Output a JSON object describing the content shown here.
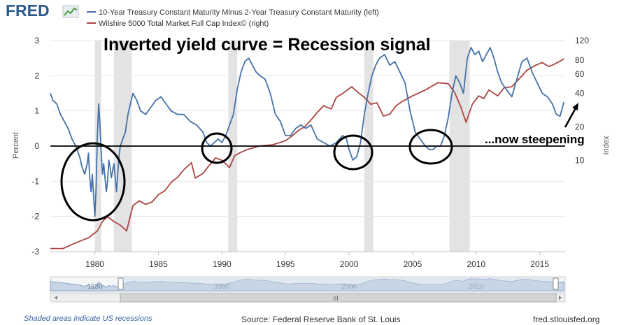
{
  "header": {
    "logo_text": "FRED",
    "legend": [
      {
        "label": "10-Year Treasury Constant Maturity Minus 2-Year Treasury Constant Maturity (left)",
        "color": "#4572a7"
      },
      {
        "label": "Wilshire 5000 Total Market Full Cap Index© (right)",
        "color": "#aa4643"
      }
    ]
  },
  "annotations": {
    "title": "Inverted yield curve = Recession signal",
    "steepening": "...now steepening"
  },
  "footer": {
    "note": "Shaded areas indicate US recessions",
    "source": "Source: Federal Reserve Bank of St. Louis",
    "site": "fred.stlouisfed.org"
  },
  "chart_data": {
    "type": "line",
    "xlabel": "",
    "ylabel": "Percent",
    "ylabel_right": "Index",
    "xlim": [
      1976.5,
      2017
    ],
    "ylim": [
      -3,
      3
    ],
    "ylim_right": [
      1.5,
      120
    ],
    "right_scale": "log",
    "x_ticks": [
      1980,
      1985,
      1990,
      1995,
      2000,
      2005,
      2010,
      2015
    ],
    "y_ticks": [
      -3,
      -2,
      -1,
      0,
      1,
      2,
      3
    ],
    "y_right_ticks": [
      10,
      20,
      40,
      60,
      80,
      120
    ],
    "grid": true,
    "reference_line_y": 0,
    "recessions": [
      [
        1980.0,
        1980.5
      ],
      [
        1981.5,
        1982.9
      ],
      [
        1990.5,
        1991.2
      ],
      [
        2001.2,
        2001.9
      ],
      [
        2007.9,
        2009.5
      ]
    ],
    "series": [
      {
        "name": "10-Year Treasury Constant Maturity Minus 2-Year Treasury Constant Maturity (left)",
        "axis": "left",
        "color": "#4572a7",
        "x": [
          1976.5,
          1976.7,
          1977.0,
          1977.3,
          1977.6,
          1977.9,
          1978.2,
          1978.5,
          1978.8,
          1979.0,
          1979.2,
          1979.4,
          1979.5,
          1979.6,
          1979.7,
          1979.8,
          1979.9,
          1980.0,
          1980.1,
          1980.2,
          1980.3,
          1980.4,
          1980.5,
          1980.6,
          1980.7,
          1980.8,
          1980.9,
          1981.0,
          1981.1,
          1981.2,
          1981.3,
          1981.5,
          1981.7,
          1981.9,
          1982.0,
          1982.2,
          1982.4,
          1982.6,
          1982.8,
          1983.0,
          1983.3,
          1983.6,
          1984.0,
          1984.4,
          1984.8,
          1985.2,
          1985.6,
          1986.0,
          1986.5,
          1987.0,
          1987.5,
          1988.0,
          1988.5,
          1988.8,
          1989.1,
          1989.4,
          1989.7,
          1990.0,
          1990.3,
          1990.6,
          1990.9,
          1991.2,
          1991.5,
          1991.8,
          1992.1,
          1992.4,
          1992.7,
          1993.0,
          1993.4,
          1993.8,
          1994.2,
          1994.6,
          1995.0,
          1995.4,
          1995.8,
          1996.2,
          1996.6,
          1997.0,
          1997.5,
          1998.0,
          1998.5,
          1999.0,
          1999.5,
          1999.8,
          2000.0,
          2000.3,
          2000.6,
          2000.9,
          2001.2,
          2001.5,
          2001.8,
          2002.1,
          2002.4,
          2002.8,
          2003.2,
          2003.6,
          2004.0,
          2004.4,
          2004.8,
          2005.2,
          2005.6,
          2006.0,
          2006.3,
          2006.6,
          2006.9,
          2007.2,
          2007.5,
          2007.8,
          2008.1,
          2008.4,
          2008.7,
          2009.0,
          2009.3,
          2009.6,
          2009.9,
          2010.2,
          2010.5,
          2010.8,
          2011.1,
          2011.4,
          2011.7,
          2012.0,
          2012.4,
          2012.8,
          2013.2,
          2013.6,
          2014.0,
          2014.4,
          2014.8,
          2015.2,
          2015.6,
          2016.0,
          2016.3,
          2016.6,
          2016.9
        ],
        "values": [
          1.5,
          1.3,
          1.2,
          0.9,
          0.7,
          0.5,
          0.2,
          0.0,
          -0.3,
          -0.6,
          -0.8,
          -0.5,
          -0.2,
          -0.9,
          -1.3,
          -0.8,
          -1.4,
          -2.0,
          -1.2,
          0.3,
          1.2,
          0.6,
          -0.2,
          -0.8,
          -0.5,
          -0.9,
          -1.3,
          -1.0,
          -0.4,
          -0.6,
          -0.9,
          -0.5,
          -1.3,
          -0.3,
          0.0,
          0.2,
          0.4,
          0.9,
          1.2,
          1.5,
          1.3,
          1.0,
          0.9,
          1.1,
          1.3,
          1.4,
          1.2,
          1.0,
          0.9,
          0.9,
          0.7,
          0.6,
          0.4,
          0.1,
          0.0,
          0.1,
          0.2,
          0.1,
          0.3,
          0.6,
          0.9,
          1.6,
          2.1,
          2.4,
          2.5,
          2.3,
          2.1,
          2.0,
          1.9,
          1.5,
          0.9,
          0.7,
          0.3,
          0.3,
          0.5,
          0.6,
          0.5,
          0.6,
          0.2,
          0.1,
          0.0,
          0.1,
          0.3,
          0.2,
          -0.1,
          -0.4,
          -0.3,
          0.1,
          0.9,
          1.5,
          2.0,
          2.3,
          2.5,
          2.6,
          2.3,
          2.4,
          2.1,
          1.8,
          1.0,
          0.4,
          0.2,
          0.0,
          -0.1,
          -0.1,
          0.0,
          0.0,
          0.3,
          0.8,
          1.5,
          2.0,
          1.8,
          1.5,
          2.5,
          2.8,
          2.6,
          2.7,
          2.4,
          2.6,
          2.8,
          2.5,
          2.1,
          1.8,
          1.6,
          1.4,
          1.9,
          2.4,
          2.5,
          2.1,
          1.8,
          1.5,
          1.4,
          1.2,
          0.9,
          0.85,
          1.25
        ]
      },
      {
        "name": "Wilshire 5000 Total Market Full Cap Index© (right)",
        "axis": "right",
        "color": "#aa4643",
        "x": [
          1976.5,
          1977.5,
          1978.5,
          1979.5,
          1980.2,
          1980.6,
          1981.0,
          1981.5,
          1982.0,
          1982.5,
          1983.0,
          1983.5,
          1984.0,
          1984.5,
          1985.0,
          1985.5,
          1986.0,
          1986.5,
          1987.0,
          1987.6,
          1987.9,
          1988.5,
          1989.0,
          1989.5,
          1990.0,
          1990.6,
          1991.0,
          1991.5,
          1992.0,
          1993.0,
          1994.0,
          1995.0,
          1995.5,
          1996.0,
          1996.5,
          1997.0,
          1997.5,
          1998.0,
          1998.6,
          1999.0,
          1999.5,
          2000.2,
          2000.8,
          2001.2,
          2001.7,
          2002.2,
          2002.7,
          2003.2,
          2003.7,
          2004.2,
          2005.0,
          2006.0,
          2007.0,
          2007.8,
          2008.3,
          2008.8,
          2009.2,
          2009.7,
          2010.2,
          2010.6,
          2011.0,
          2011.7,
          2012.2,
          2012.8,
          2013.5,
          2014.0,
          2014.7,
          2015.2,
          2015.7,
          2016.0,
          2016.5,
          2016.9
        ],
        "values": [
          1.6,
          1.6,
          1.8,
          2.0,
          2.3,
          2.8,
          3.1,
          2.8,
          2.6,
          2.3,
          3.9,
          4.3,
          4.0,
          4.2,
          4.9,
          5.3,
          6.3,
          7.0,
          8.2,
          9.5,
          6.9,
          7.6,
          9.0,
          10.5,
          10.0,
          8.6,
          11.0,
          11.8,
          12.5,
          13.5,
          13.8,
          15.0,
          16.5,
          18.5,
          20.0,
          23.0,
          27.0,
          31.0,
          29.0,
          37.0,
          40.0,
          46.0,
          40.0,
          37.0,
          32.0,
          33.0,
          25.0,
          26.0,
          31.0,
          34.0,
          38.0,
          43.0,
          50.0,
          49.0,
          41.0,
          30.0,
          22.0,
          32.0,
          38.0,
          36.0,
          43.0,
          38.0,
          45.0,
          46.0,
          56.0,
          65.0,
          72.0,
          76.0,
          70.0,
          72.0,
          77.0,
          82.0
        ]
      }
    ]
  }
}
